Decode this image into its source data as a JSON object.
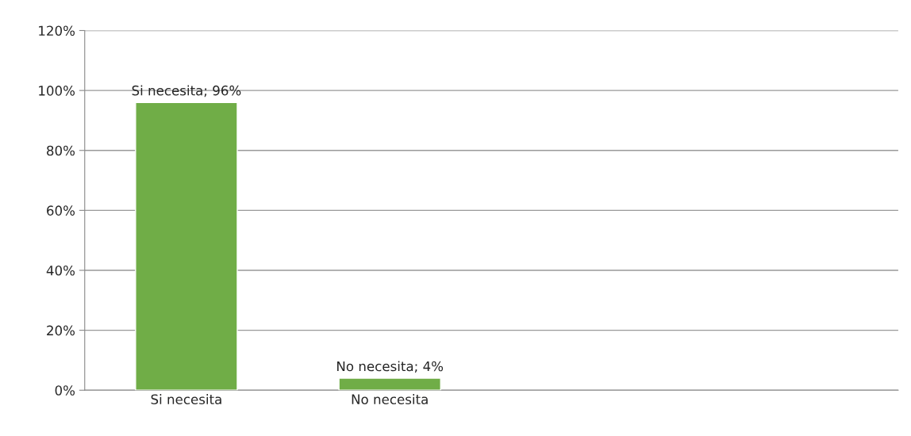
{
  "chart_data": {
    "type": "bar",
    "categories": [
      "Si necesita",
      "No necesita",
      null,
      null
    ],
    "values": [
      96,
      4,
      null,
      null
    ],
    "color": "#70ad47",
    "value_labels": [
      "Si necesita; 96%",
      "No necesita; 4%",
      null,
      null
    ],
    "ylim": [
      0,
      120
    ],
    "yticks": [
      {
        "value": 0,
        "label": "0%"
      },
      {
        "value": 20,
        "label": "20%"
      },
      {
        "value": 40,
        "label": "40%"
      },
      {
        "value": 60,
        "label": "60%"
      },
      {
        "value": 80,
        "label": "80%"
      },
      {
        "value": 100,
        "label": "100%"
      },
      {
        "value": 120,
        "label": "120%"
      }
    ],
    "grid": "y",
    "legend": false
  }
}
